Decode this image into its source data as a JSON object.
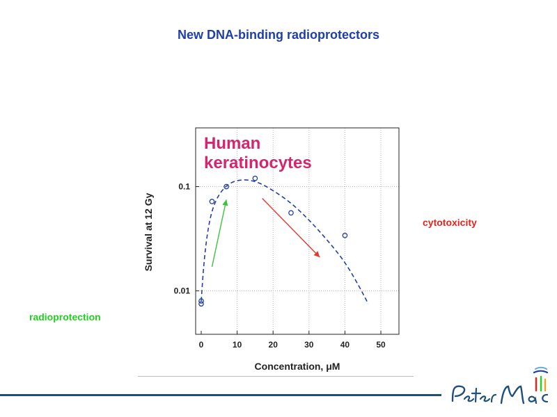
{
  "slide": {
    "title": "New DNA-binding radioprotectors",
    "cytotoxicity_label": "cytotoxicity",
    "radioprotection_label": "radioprotection",
    "logo_text": "Peter Mac"
  },
  "colors": {
    "title": "#1f3ea8",
    "cytotoxicity": "#e8221b",
    "radioprotection": "#1fd01f",
    "inset_label": "#d6246e",
    "series": "#1f3ea8",
    "green_arrow": "#3cc23c",
    "red_arrow": "#e03a2a",
    "footer_bar": "#1d4f7a"
  },
  "chart_data": {
    "type": "scatter",
    "title": "",
    "inset_label": "Human keratinocytes",
    "xlabel": "Concentration, μM",
    "ylabel": "Survival at 12 Gy",
    "xlim": [
      0,
      55
    ],
    "ylim": [
      0.004,
      0.4
    ],
    "yscale": "log",
    "x_ticks": [
      "0",
      "10",
      "20",
      "30",
      "40",
      "50"
    ],
    "x_tick_values": [
      0,
      10,
      20,
      30,
      40,
      50
    ],
    "y_ticks": [
      "0.01",
      "0.1"
    ],
    "y_tick_values": [
      0.01,
      0.1
    ],
    "grid": true,
    "grid_style": "dotted",
    "series": [
      {
        "points": [
          {
            "x": 0,
            "y": 0.0075
          },
          {
            "x": 0,
            "y": 0.008
          },
          {
            "x": 3,
            "y": 0.072
          },
          {
            "x": 7,
            "y": 0.1
          },
          {
            "x": 15,
            "y": 0.12
          },
          {
            "x": 25,
            "y": 0.056
          },
          {
            "x": 40,
            "y": 0.034
          }
        ],
        "marker": "open-circle"
      }
    ],
    "fit_curve": {
      "style": "dashed",
      "points": [
        {
          "x": 0,
          "y": 0.008
        },
        {
          "x": 0.7,
          "y": 0.018
        },
        {
          "x": 1.7,
          "y": 0.036
        },
        {
          "x": 3,
          "y": 0.06
        },
        {
          "x": 5,
          "y": 0.086
        },
        {
          "x": 8,
          "y": 0.11
        },
        {
          "x": 12,
          "y": 0.118
        },
        {
          "x": 16,
          "y": 0.11
        },
        {
          "x": 20,
          "y": 0.092
        },
        {
          "x": 25,
          "y": 0.07
        },
        {
          "x": 30,
          "y": 0.048
        },
        {
          "x": 35,
          "y": 0.031
        },
        {
          "x": 40,
          "y": 0.019
        },
        {
          "x": 44,
          "y": 0.011
        },
        {
          "x": 46.5,
          "y": 0.0075
        }
      ]
    },
    "annotations": [
      {
        "type": "arrow",
        "color": "green",
        "from": {
          "x": 3,
          "y": 0.017
        },
        "to": {
          "x": 7,
          "y": 0.075
        }
      },
      {
        "type": "arrow",
        "color": "red",
        "from": {
          "x": 17,
          "y": 0.077
        },
        "to": {
          "x": 33,
          "y": 0.021
        }
      }
    ]
  }
}
